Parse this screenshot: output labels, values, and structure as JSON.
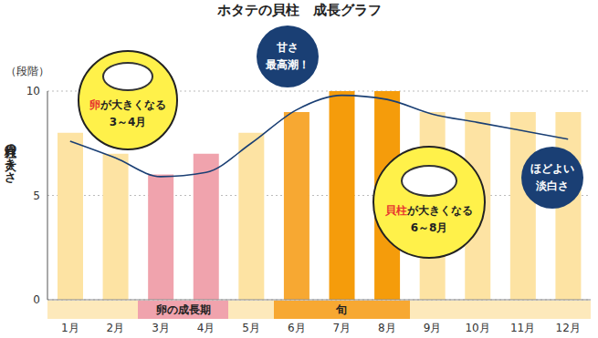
{
  "chart_data": {
    "type": "bar",
    "title": "ホタテの貝柱　成長グラフ",
    "y_label": "貝柱の大きさ",
    "y_unit_label": "（段階）",
    "categories": [
      "1月",
      "2月",
      "3月",
      "4月",
      "5月",
      "6月",
      "7月",
      "8月",
      "9月",
      "10月",
      "11月",
      "12月"
    ],
    "series": [
      {
        "type": "bar",
        "values": [
          8,
          7,
          6,
          7,
          8,
          9,
          10,
          10,
          9,
          9,
          9,
          9
        ],
        "colors": [
          "#fde3a3",
          "#fde3a3",
          "#f0a3ad",
          "#f0a3ad",
          "#fde3a3",
          "#f7a832",
          "#f59c0b",
          "#f59c0b",
          "#fde3a3",
          "#fde3a3",
          "#fde3a3",
          "#fde3a3"
        ]
      },
      {
        "type": "line",
        "values": [
          7.6,
          6.8,
          5.9,
          6.1,
          7.5,
          9.1,
          9.8,
          9.6,
          8.9,
          8.5,
          8.1,
          7.7
        ],
        "color": "#1a3f74"
      }
    ],
    "ylim": [
      0,
      10
    ],
    "yticks": [
      0,
      5,
      10
    ],
    "grid": true,
    "periods": [
      {
        "label": "卵の成長期",
        "start": "3月",
        "end": "4月",
        "color": "#f0a3ad"
      },
      {
        "label": "旬",
        "start": "6月",
        "end": "8月",
        "color": "#f7a832"
      }
    ],
    "annotations": [
      {
        "lines": [
          "卵が大きくなる",
          "3～4月"
        ],
        "highlight": "卵",
        "color": "#fff14a"
      },
      {
        "lines": [
          "甘さ",
          "最高潮！"
        ],
        "color": "#1a3f74"
      },
      {
        "lines": [
          "貝柱が大きくなる",
          "6～8月"
        ],
        "highlight": "貝柱",
        "color": "#fff14a"
      },
      {
        "lines": [
          "ほどよい",
          "淡白さ"
        ],
        "color": "#1a3f74"
      }
    ]
  }
}
